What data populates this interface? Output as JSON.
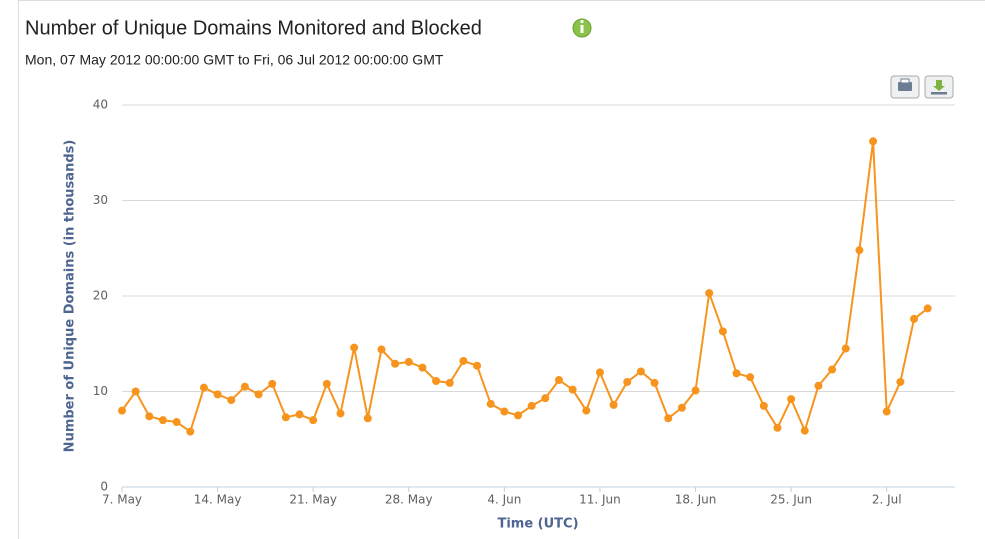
{
  "chart_data": {
    "type": "line",
    "title": "Number of Unique Domains Monitored and Blocked",
    "subtitle": "Mon, 07 May 2012 00:00:00 GMT to Fri, 06 Jul 2012 00:00:00 GMT",
    "y_label": "Number of Unique Domains (in thousands)",
    "x_label": "Time (UTC)",
    "x": [
      "2012-05-07",
      "2012-05-08",
      "2012-05-09",
      "2012-05-10",
      "2012-05-11",
      "2012-05-12",
      "2012-05-13",
      "2012-05-14",
      "2012-05-15",
      "2012-05-16",
      "2012-05-17",
      "2012-05-18",
      "2012-05-19",
      "2012-05-20",
      "2012-05-21",
      "2012-05-22",
      "2012-05-23",
      "2012-05-24",
      "2012-05-25",
      "2012-05-26",
      "2012-05-27",
      "2012-05-28",
      "2012-05-29",
      "2012-05-30",
      "2012-05-31",
      "2012-06-01",
      "2012-06-02",
      "2012-06-03",
      "2012-06-04",
      "2012-06-05",
      "2012-06-06",
      "2012-06-07",
      "2012-06-08",
      "2012-06-09",
      "2012-06-10",
      "2012-06-11",
      "2012-06-12",
      "2012-06-13",
      "2012-06-14",
      "2012-06-15",
      "2012-06-16",
      "2012-06-17",
      "2012-06-18",
      "2012-06-19",
      "2012-06-20",
      "2012-06-21",
      "2012-06-22",
      "2012-06-23",
      "2012-06-24",
      "2012-06-25",
      "2012-06-26",
      "2012-06-27",
      "2012-06-28",
      "2012-06-29",
      "2012-06-30",
      "2012-07-01",
      "2012-07-02",
      "2012-07-03",
      "2012-07-04",
      "2012-07-05"
    ],
    "series": [
      {
        "name": "Unique Domains",
        "color": "#f7941d",
        "values": [
          8.0,
          10.0,
          7.4,
          7.0,
          6.8,
          5.8,
          10.4,
          9.7,
          9.1,
          10.5,
          9.7,
          10.8,
          7.3,
          7.6,
          7.0,
          10.8,
          7.7,
          14.6,
          7.2,
          14.4,
          12.9,
          13.1,
          12.5,
          11.1,
          10.9,
          13.2,
          12.7,
          8.7,
          7.9,
          7.5,
          8.5,
          9.3,
          11.2,
          10.2,
          8.0,
          12.0,
          8.6,
          11.0,
          12.1,
          10.9,
          7.2,
          8.3,
          10.1,
          20.3,
          16.3,
          11.9,
          11.5,
          8.5,
          6.2,
          9.2,
          5.9,
          10.6,
          12.3,
          14.5,
          24.8,
          36.2,
          7.9,
          11.0,
          17.6,
          18.7
        ]
      }
    ],
    "xlim": [
      "2012-05-07",
      "2012-07-07"
    ],
    "xticks": [
      {
        "value": "2012-05-07",
        "label": "7. May"
      },
      {
        "value": "2012-05-14",
        "label": "14. May"
      },
      {
        "value": "2012-05-21",
        "label": "21. May"
      },
      {
        "value": "2012-05-28",
        "label": "28. May"
      },
      {
        "value": "2012-06-04",
        "label": "4. Jun"
      },
      {
        "value": "2012-06-11",
        "label": "11. Jun"
      },
      {
        "value": "2012-06-18",
        "label": "18. Jun"
      },
      {
        "value": "2012-06-25",
        "label": "25. Jun"
      },
      {
        "value": "2012-07-02",
        "label": "2. Jul"
      }
    ],
    "ylim": [
      0,
      40
    ],
    "yticks": [
      0,
      10,
      20,
      30,
      40
    ],
    "grid": true
  }
}
